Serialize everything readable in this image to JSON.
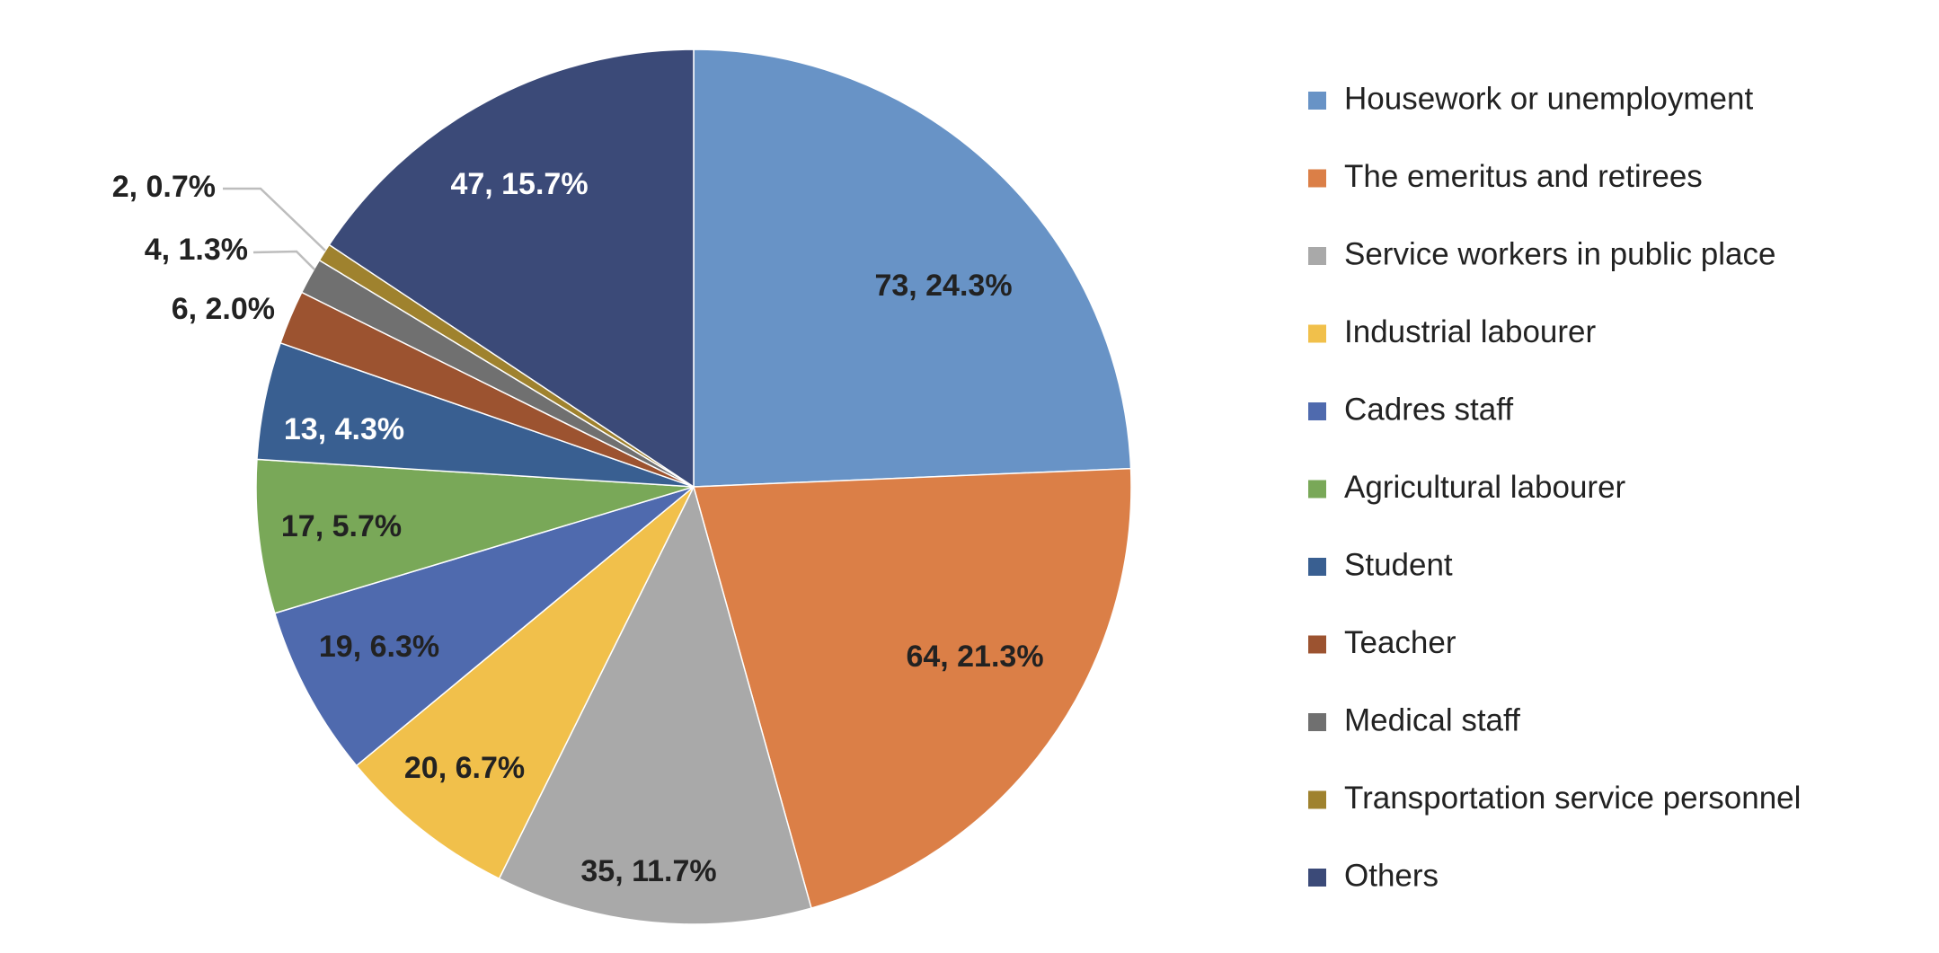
{
  "chart_data": {
    "type": "pie",
    "slices": [
      {
        "label": "Housework or unemployment",
        "value": 73,
        "percent": 24.3,
        "color": "#6893c6",
        "data_label": "73, 24.3%",
        "label_color": "#222222"
      },
      {
        "label": "The emeritus and retirees",
        "value": 64,
        "percent": 21.3,
        "color": "#db7f47",
        "data_label": "64, 21.3%",
        "label_color": "#222222"
      },
      {
        "label": "Service workers in public place",
        "value": 35,
        "percent": 11.7,
        "color": "#a9a9a9",
        "data_label": "35, 11.7%",
        "label_color": "#222222"
      },
      {
        "label": "Industrial labourer",
        "value": 20,
        "percent": 6.7,
        "color": "#f1c04b",
        "data_label": "20, 6.7%",
        "label_color": "#222222"
      },
      {
        "label": "Cadres staff",
        "value": 19,
        "percent": 6.3,
        "color": "#4f6aae",
        "data_label": "19, 6.3%",
        "label_color": "#222222"
      },
      {
        "label": "Agricultural labourer",
        "value": 17,
        "percent": 5.7,
        "color": "#79a858",
        "data_label": "17, 5.7%",
        "label_color": "#222222"
      },
      {
        "label": "Student",
        "value": 13,
        "percent": 4.3,
        "color": "#395f91",
        "data_label": "13, 4.3%",
        "label_color": "#ffffff"
      },
      {
        "label": "Teacher",
        "value": 6,
        "percent": 2.0,
        "color": "#9c5330",
        "data_label": "6, 2.0%",
        "label_color": "#222222"
      },
      {
        "label": "Medical staff",
        "value": 4,
        "percent": 1.3,
        "color": "#707070",
        "data_label": "4, 1.3%",
        "label_color": "#222222"
      },
      {
        "label": "Transportation service personnel",
        "value": 2,
        "percent": 0.7,
        "color": "#9f822e",
        "data_label": "2, 0.7%",
        "label_color": "#222222"
      },
      {
        "label": "Others",
        "value": 47,
        "percent": 15.7,
        "color": "#3b4a78",
        "data_label": "47, 15.7%",
        "label_color": "#ffffff"
      }
    ],
    "legend_position": "right",
    "start_angle": "12 o'clock",
    "direction": "clockwise"
  }
}
